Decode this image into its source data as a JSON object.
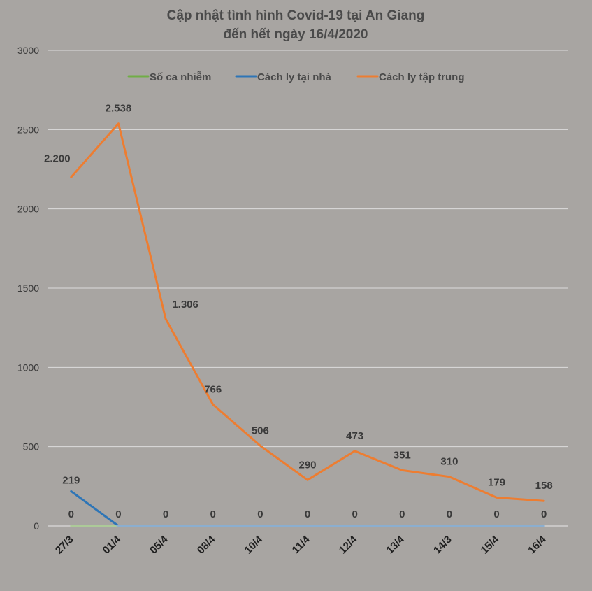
{
  "chart_data": {
    "type": "line",
    "title_lines": [
      "Cập nhật tình hình Covid-19  tại An Giang",
      "đến hết ngày 16/4/2020"
    ],
    "categories": [
      "27/3",
      "01/4",
      "05/4",
      "08/4",
      "10/4",
      "11/4",
      "12/4",
      "13/4",
      "14/3",
      "15/4",
      "16/4"
    ],
    "ylim": [
      0,
      3000
    ],
    "yticks": [
      0,
      500,
      1000,
      1500,
      2000,
      2500,
      3000
    ],
    "grid": true,
    "legend_position": "top",
    "series": [
      {
        "name": "Số ca nhiễm",
        "color": "#70ad47",
        "values": [
          0,
          0,
          null,
          null,
          null,
          null,
          null,
          null,
          null,
          null,
          null
        ],
        "labels": [
          "0",
          null,
          null,
          null,
          null,
          null,
          null,
          null,
          null,
          null,
          null
        ]
      },
      {
        "name": "Cách ly tại nhà",
        "color": "#2e75b6",
        "values": [
          219,
          0,
          0,
          0,
          0,
          0,
          0,
          0,
          0,
          0,
          0
        ],
        "labels": [
          "219",
          "0",
          "0",
          "0",
          "0",
          "0",
          "0",
          "0",
          "0",
          "0",
          "0"
        ]
      },
      {
        "name": "Cách ly tập trung",
        "color": "#ed7d31",
        "values": [
          2200,
          2538,
          1306,
          766,
          506,
          290,
          473,
          351,
          310,
          179,
          158
        ],
        "labels": [
          "2.200",
          "2.538",
          "1.306",
          "766",
          "506",
          "290",
          "473",
          "351",
          "310",
          "179",
          "158"
        ]
      }
    ]
  }
}
